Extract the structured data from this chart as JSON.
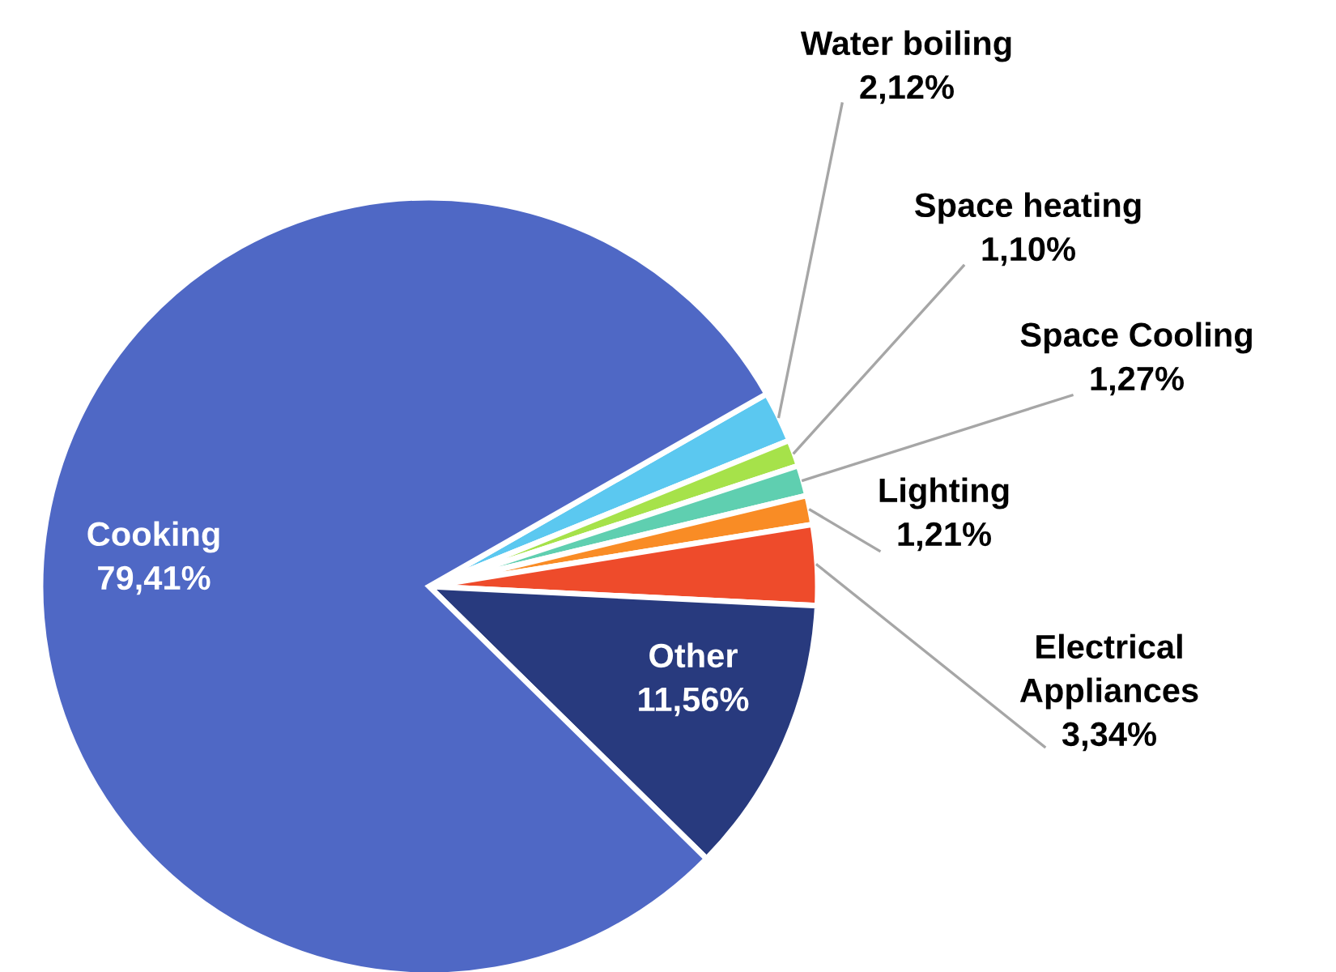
{
  "chart_data": {
    "type": "pie",
    "categories": [
      "Water boiling",
      "Space heating",
      "Space Cooling",
      "Lighting",
      "Electrical\nAppliances",
      "Other",
      "Cooking"
    ],
    "values": [
      2.12,
      1.1,
      1.27,
      1.21,
      3.34,
      11.56,
      79.41
    ],
    "value_labels": [
      "2,12%",
      "1,10%",
      "1,27%",
      "1,21%",
      "3,34%",
      "11,56%",
      "79,41%"
    ],
    "colors": [
      "#5bc8f0",
      "#a6e24a",
      "#5fcfb0",
      "#f98c25",
      "#ee4b2b",
      "#283a7e",
      "#4f68c5"
    ],
    "legend": false
  }
}
